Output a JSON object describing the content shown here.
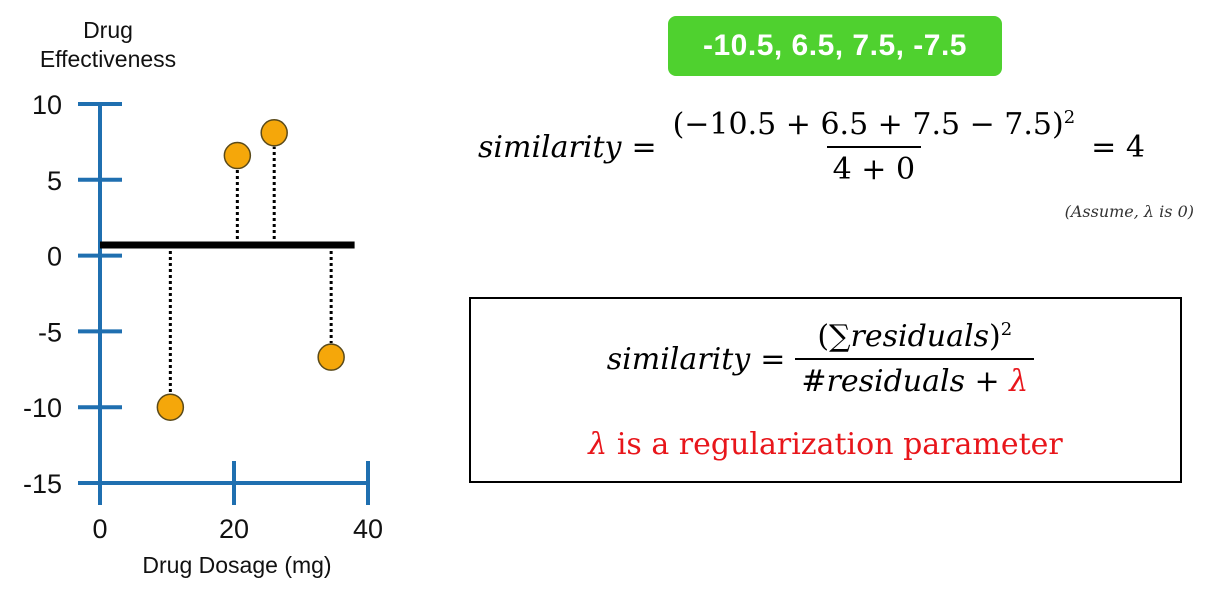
{
  "chart_data": {
    "type": "scatter",
    "ylabel_lines": [
      "Drug",
      "Effectiveness"
    ],
    "xlabel": "Drug Dosage (mg)",
    "xlim": [
      0,
      40
    ],
    "ylim": [
      -15,
      10
    ],
    "x_ticks": [
      0,
      20,
      40
    ],
    "y_ticks": [
      10,
      5,
      0,
      -5,
      -10,
      -15
    ],
    "x_tick_labels": [
      "0",
      "20",
      "40"
    ],
    "y_tick_labels": [
      "10",
      "5",
      "0",
      "-5",
      "-10",
      "-15"
    ],
    "prediction_line_y": 0.7,
    "prediction_line_x": [
      0,
      38
    ],
    "points": [
      {
        "x": 10.5,
        "y": -10
      },
      {
        "x": 20.5,
        "y": 6.6
      },
      {
        "x": 26,
        "y": 8.1
      },
      {
        "x": 34.5,
        "y": -6.7
      }
    ],
    "residuals": [
      -10.5,
      6.5,
      7.5,
      -7.5
    ],
    "colors": {
      "axis": "#1f6fb0",
      "point_fill": "#f5a70a",
      "point_stroke": "#5a4a1a",
      "prediction_line": "#000000"
    }
  },
  "badge": {
    "text": "-10.5, 6.5, 7.5, -7.5",
    "color": "#4fd12f"
  },
  "formula1": {
    "lhs": "similarity",
    "eq": "=",
    "numerator": "(−10.5 + 6.5 + 7.5 − 7.5)",
    "numerator_exp": "2",
    "denominator": "4 + 0",
    "result": "= 4"
  },
  "note": "(Assume, λ is 0)",
  "definition": {
    "lhs": "similarity",
    "eq": "=",
    "numerator_open": "(",
    "numerator_sum": "∑",
    "numerator_word": "residuals",
    "numerator_close": ")",
    "numerator_exp": "2",
    "denominator_main": "#residuals + ",
    "denominator_lambda": "λ",
    "param_lambda": "λ",
    "param_text": " is a regularization parameter"
  }
}
